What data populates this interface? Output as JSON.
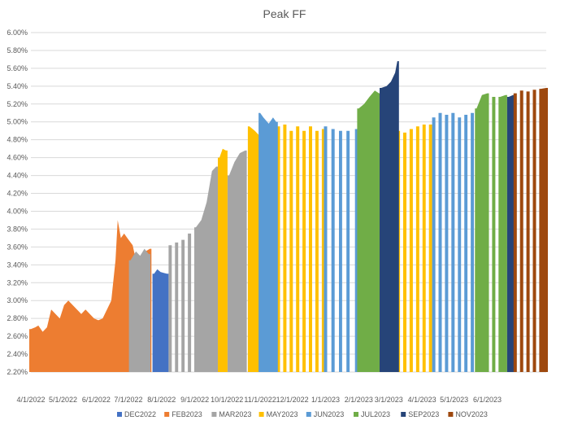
{
  "chart_data": {
    "type": "area",
    "title": "Peak FF",
    "xlabel": "",
    "ylabel": "",
    "xlim": [
      "2022-04-01",
      "2023-07-26"
    ],
    "ylim": [
      2.2,
      6.0
    ],
    "grid": true,
    "legend_position": "bottom",
    "y_ticks": [
      "2.20%",
      "2.40%",
      "2.60%",
      "2.80%",
      "3.00%",
      "3.20%",
      "3.40%",
      "3.60%",
      "3.80%",
      "4.00%",
      "4.20%",
      "4.40%",
      "4.60%",
      "4.80%",
      "5.00%",
      "5.20%",
      "5.40%",
      "5.60%",
      "5.80%",
      "6.00%"
    ],
    "x_ticks": [
      {
        "date": "2022-04-01",
        "label": "4/1/2022"
      },
      {
        "date": "2022-05-01",
        "label": "5/1/2022"
      },
      {
        "date": "2022-06-01",
        "label": "6/1/2022"
      },
      {
        "date": "2022-07-01",
        "label": "7/1/2022"
      },
      {
        "date": "2022-08-01",
        "label": "8/1/2022"
      },
      {
        "date": "2022-09-01",
        "label": "9/1/2022"
      },
      {
        "date": "2022-10-01",
        "label": "10/1/2022"
      },
      {
        "date": "2022-11-01",
        "label": "11/1/2022"
      },
      {
        "date": "2022-12-01",
        "label": "12/1/2022"
      },
      {
        "date": "2023-01-01",
        "label": "1/1/2023"
      },
      {
        "date": "2023-02-01",
        "label": "2/1/2023"
      },
      {
        "date": "2023-03-01",
        "label": "3/1/2023"
      },
      {
        "date": "2023-04-01",
        "label": "4/1/2023"
      },
      {
        "date": "2023-05-01",
        "label": "5/1/2023"
      },
      {
        "date": "2023-06-01",
        "label": "6/1/2023"
      }
    ],
    "series": [
      {
        "name": "DEC2022",
        "color": "#4472C4",
        "points": [
          [
            "2022-07-25",
            3.3
          ],
          [
            "2022-07-28",
            3.35
          ],
          [
            "2022-07-31",
            3.32
          ],
          [
            "2022-08-03",
            3.31
          ],
          [
            "2022-08-06",
            3.3
          ]
        ]
      },
      {
        "name": "FEB2023",
        "color": "#ED7D31",
        "points": [
          [
            "2022-04-01",
            2.68
          ],
          [
            "2022-04-05",
            2.7
          ],
          [
            "2022-04-08",
            2.72
          ],
          [
            "2022-04-12",
            2.65
          ],
          [
            "2022-04-16",
            2.7
          ],
          [
            "2022-04-20",
            2.9
          ],
          [
            "2022-04-24",
            2.85
          ],
          [
            "2022-04-28",
            2.8
          ],
          [
            "2022-05-02",
            2.95
          ],
          [
            "2022-05-06",
            3.0
          ],
          [
            "2022-05-10",
            2.95
          ],
          [
            "2022-05-14",
            2.9
          ],
          [
            "2022-05-18",
            2.85
          ],
          [
            "2022-05-22",
            2.9
          ],
          [
            "2022-05-26",
            2.85
          ],
          [
            "2022-05-30",
            2.8
          ],
          [
            "2022-06-03",
            2.78
          ],
          [
            "2022-06-07",
            2.8
          ],
          [
            "2022-06-11",
            2.9
          ],
          [
            "2022-06-15",
            3.0
          ],
          [
            "2022-06-19",
            3.45
          ],
          [
            "2022-06-21",
            3.9
          ],
          [
            "2022-06-24",
            3.7
          ],
          [
            "2022-06-27",
            3.75
          ],
          [
            "2022-06-30",
            3.7
          ],
          [
            "2022-07-05",
            3.62
          ],
          [
            "2022-07-09",
            3.4
          ],
          [
            "2022-07-13",
            3.38
          ],
          [
            "2022-07-17",
            3.55
          ],
          [
            "2022-07-21",
            3.58
          ]
        ]
      },
      {
        "name": "MAR2023",
        "color": "#A5A5A5",
        "points": [
          [
            "2022-07-03",
            3.45
          ],
          [
            "2022-07-08",
            3.55
          ],
          [
            "2022-07-12",
            3.5
          ],
          [
            "2022-07-16",
            3.58
          ],
          [
            "2022-07-20",
            3.52
          ],
          [
            "2022-08-09",
            3.62
          ],
          [
            "2022-08-15",
            3.65
          ],
          [
            "2022-08-21",
            3.68
          ],
          [
            "2022-08-27",
            3.75
          ],
          [
            "2022-09-02",
            3.82
          ],
          [
            "2022-09-07",
            3.9
          ],
          [
            "2022-09-12",
            4.1
          ],
          [
            "2022-09-17",
            4.45
          ],
          [
            "2022-09-21",
            4.5
          ],
          [
            "2022-10-03",
            4.4
          ],
          [
            "2022-10-08",
            4.55
          ],
          [
            "2022-10-13",
            4.65
          ],
          [
            "2022-10-18",
            4.68
          ]
        ]
      },
      {
        "name": "MAY2023",
        "color": "#FFC000",
        "points": [
          [
            "2022-09-24",
            4.6
          ],
          [
            "2022-09-27",
            4.7
          ],
          [
            "2022-09-30",
            4.68
          ],
          [
            "2022-10-22",
            4.95
          ],
          [
            "2022-10-27",
            4.9
          ],
          [
            "2022-10-31",
            4.85
          ],
          [
            "2022-11-06",
            4.98
          ],
          [
            "2022-11-12",
            4.92
          ],
          [
            "2022-11-18",
            4.95
          ],
          [
            "2022-11-24",
            4.97
          ],
          [
            "2022-11-30",
            4.9
          ],
          [
            "2022-12-06",
            4.95
          ],
          [
            "2022-12-12",
            4.9
          ],
          [
            "2022-12-18",
            4.95
          ],
          [
            "2022-12-24",
            4.9
          ],
          [
            "2022-12-30",
            4.92
          ],
          [
            "2023-03-10",
            4.9
          ],
          [
            "2023-03-16",
            4.88
          ],
          [
            "2023-03-22",
            4.92
          ],
          [
            "2023-03-28",
            4.95
          ],
          [
            "2023-04-03",
            4.97
          ],
          [
            "2023-04-09",
            4.97
          ]
        ]
      },
      {
        "name": "JUN2023",
        "color": "#5B9BD5",
        "points": [
          [
            "2022-11-01",
            5.1
          ],
          [
            "2022-11-04",
            5.05
          ],
          [
            "2022-11-09",
            4.98
          ],
          [
            "2022-11-13",
            5.05
          ],
          [
            "2022-11-16",
            5.0
          ],
          [
            "2023-01-01",
            4.95
          ],
          [
            "2023-01-08",
            4.92
          ],
          [
            "2023-01-15",
            4.9
          ],
          [
            "2023-01-22",
            4.9
          ],
          [
            "2023-01-30",
            4.92
          ],
          [
            "2023-03-03",
            5.28
          ],
          [
            "2023-04-12",
            5.05
          ],
          [
            "2023-04-18",
            5.1
          ],
          [
            "2023-04-24",
            5.08
          ],
          [
            "2023-04-30",
            5.1
          ],
          [
            "2023-05-06",
            5.05
          ],
          [
            "2023-05-12",
            5.08
          ],
          [
            "2023-05-18",
            5.1
          ]
        ]
      },
      {
        "name": "JUL2023",
        "color": "#70AD47",
        "points": [
          [
            "2023-02-01",
            5.15
          ],
          [
            "2023-02-06",
            5.2
          ],
          [
            "2023-02-11",
            5.28
          ],
          [
            "2023-02-16",
            5.35
          ],
          [
            "2023-02-20",
            5.32
          ],
          [
            "2023-05-22",
            5.15
          ],
          [
            "2023-05-27",
            5.3
          ],
          [
            "2023-06-01",
            5.32
          ],
          [
            "2023-06-07",
            5.28
          ],
          [
            "2023-06-13",
            5.28
          ],
          [
            "2023-06-18",
            5.3
          ]
        ]
      },
      {
        "name": "SEP2023",
        "color": "#264478",
        "points": [
          [
            "2023-02-22",
            5.38
          ],
          [
            "2023-02-27",
            5.4
          ],
          [
            "2023-03-03",
            5.45
          ],
          [
            "2023-03-07",
            5.55
          ],
          [
            "2023-03-09",
            5.68
          ],
          [
            "2023-06-21",
            5.28
          ],
          [
            "2023-06-25",
            5.3
          ]
        ]
      },
      {
        "name": "NOV2023",
        "color": "#9E480E",
        "points": [
          [
            "2023-06-27",
            5.32
          ],
          [
            "2023-07-03",
            5.35
          ],
          [
            "2023-07-09",
            5.34
          ],
          [
            "2023-07-15",
            5.36
          ],
          [
            "2023-07-21",
            5.37
          ],
          [
            "2023-07-26",
            5.38
          ]
        ]
      }
    ]
  }
}
